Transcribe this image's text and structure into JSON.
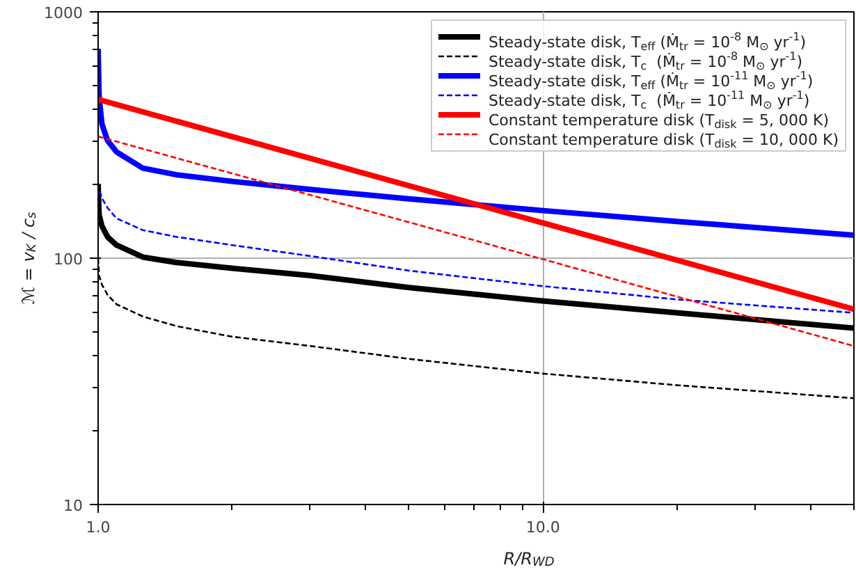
{
  "chart_data": {
    "type": "line",
    "xlabel": "R/R$_{WD}$",
    "ylabel": "ℳ = v$_{K}$ / c$_{s}$",
    "log": "xy",
    "grid": true,
    "legend": "top right",
    "xlim": [
      1,
      50
    ],
    "ylim": [
      10,
      1000
    ],
    "xticks": [
      {
        "value": 1,
        "label": "1.0"
      },
      {
        "value": 2,
        "label": null
      },
      {
        "value": 3,
        "label": null
      },
      {
        "value": 4,
        "label": null
      },
      {
        "value": 5,
        "label": null
      },
      {
        "value": 6,
        "label": null
      },
      {
        "value": 7,
        "label": null
      },
      {
        "value": 8,
        "label": null
      },
      {
        "value": 9,
        "label": null
      },
      {
        "value": 10,
        "label": "10.0"
      },
      {
        "value": 20,
        "label": null
      },
      {
        "value": 30,
        "label": null
      },
      {
        "value": 40,
        "label": null
      },
      {
        "value": 50,
        "label": null
      }
    ],
    "yticks": [
      10,
      {
        "value": 20,
        "label": null
      },
      {
        "value": 30,
        "label": null
      },
      {
        "value": 40,
        "label": null
      },
      {
        "value": 50,
        "label": null
      },
      {
        "value": 60,
        "label": null
      },
      {
        "value": 70,
        "label": null
      },
      {
        "value": 80,
        "label": null
      },
      {
        "value": 90,
        "label": null
      },
      100,
      {
        "value": 200,
        "label": null
      },
      {
        "value": 300,
        "label": null
      },
      {
        "value": 400,
        "label": null
      },
      {
        "value": 500,
        "label": null
      },
      {
        "value": 600,
        "label": null
      },
      {
        "value": 700,
        "label": null
      },
      {
        "value": 800,
        "label": null
      },
      {
        "value": 900,
        "label": null
      },
      1000
    ],
    "x": [
      1,
      1.005,
      1.02,
      1.05,
      1.1,
      1.26,
      1.5,
      2,
      3,
      5,
      10,
      20,
      50
    ],
    "series": [
      {
        "name": "Steady-state disk, T$_{eff}$ (Ṁ$_{tr}$ = 10$^{-8}$ M$_{⊙}$ yr$^{-1}$)",
        "color": "#000000",
        "line_style": "solid",
        "values": [
          200,
          150,
          135,
          122,
          113,
          101,
          96,
          91,
          85,
          76,
          67,
          60,
          52
        ]
      },
      {
        "name": "Steady-state disk, T$_{c}$  (Ṁ$_{tr}$ = 10$^{-8}$ M$_{⊙}$ yr$^{-1}$)",
        "color": "#000000",
        "line_style": "dashed",
        "values": [
          100,
          85,
          78,
          71,
          65,
          58,
          53,
          48,
          44,
          39,
          34,
          30.5,
          27
        ]
      },
      {
        "name": "Steady-state disk, T$_{eff}$ (Ṁ$_{tr}$ = 10$^{-11}$ M$_{⊙}$ yr$^{-1}$)",
        "color": "#0000ff",
        "line_style": "solid",
        "values": [
          708,
          450,
          350,
          300,
          270,
          232,
          218,
          205,
          190,
          174,
          156,
          141,
          124
        ]
      },
      {
        "name": "Steady-state disk, T$_{c}$  (Ṁ$_{tr}$ = 10$^{-11}$ M$_{⊙}$ yr$^{-1}$)",
        "color": "#0000ff",
        "line_style": "dashed",
        "values": [
          202,
          190,
          175,
          160,
          145,
          130,
          122,
          113,
          102,
          89,
          77,
          68,
          60
        ]
      },
      {
        "name": "Constant temperature disk (T$_{disk}$ = 5, 000 K)",
        "color": "#ff0000",
        "line_style": "solid",
        "x": [
          1,
          10,
          50
        ],
        "values": [
          441,
          139,
          62
        ]
      },
      {
        "name": "Constant temperature disk (T$_{disk}$ = 10, 000 K)",
        "color": "#ff0000",
        "line_style": "dashed",
        "x": [
          1,
          10,
          50
        ],
        "values": [
          312,
          99,
          44
        ]
      }
    ]
  }
}
